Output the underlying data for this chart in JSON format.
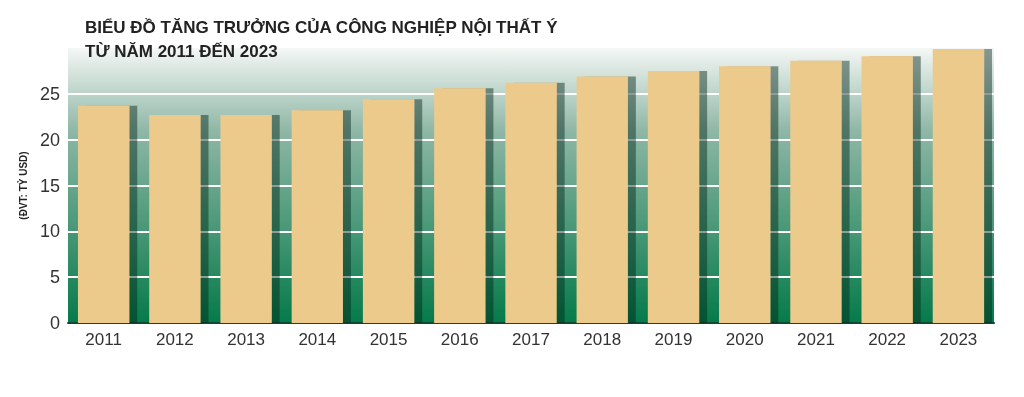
{
  "chart_data": {
    "type": "bar",
    "title": "BIỂU ĐỒ TĂNG TRƯỞNG CỦA CÔNG NGHIỆP NỘI THẤT Ý\nTỪ NĂM 2011 ĐẾN 2023",
    "ylabel": "(ĐVT: TỶ USD)",
    "categories": [
      "2011",
      "2012",
      "2013",
      "2014",
      "2015",
      "2016",
      "2017",
      "2018",
      "2019",
      "2020",
      "2021",
      "2022",
      "2023"
    ],
    "values": [
      23.7,
      22.7,
      22.7,
      23.2,
      24.4,
      25.6,
      26.2,
      26.9,
      27.5,
      28.0,
      28.6,
      29.1,
      29.9
    ],
    "color": "#ecca8c",
    "ylim": [
      0,
      30
    ],
    "yticks": [
      0,
      5,
      10,
      15,
      20,
      25
    ],
    "grid": "y"
  }
}
